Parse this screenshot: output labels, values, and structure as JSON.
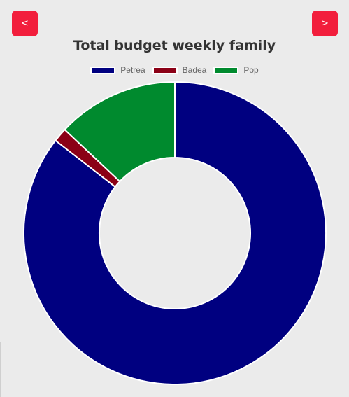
{
  "nav": {
    "prev_label": "<",
    "next_label": ">"
  },
  "chart_data": {
    "type": "pie",
    "variant": "doughnut",
    "title": "Total budget weekly family",
    "legend_position": "top",
    "categories": [
      "Petrea",
      "Badea",
      "Pop"
    ],
    "values": [
      85.5,
      1.5,
      13.0
    ],
    "colors": [
      "#000080",
      "#8b0016",
      "#008a2e"
    ]
  },
  "colors": {
    "button": "#f21e3c",
    "background": "#ebebeb"
  }
}
